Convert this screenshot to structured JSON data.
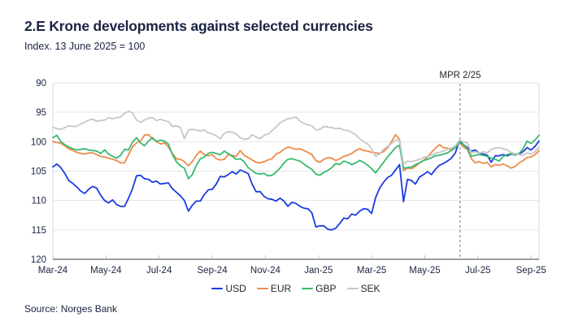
{
  "header": {
    "title": "2.E Krone developments against selected currencies",
    "subtitle": "Index. 13 June 2025 = 100"
  },
  "source": {
    "label": "Source: Norges Bank"
  },
  "colors": {
    "usd": "#1a3cdf",
    "eur": "#ee8b49",
    "gbp": "#36ba6f",
    "sek": "#c5c7c9",
    "grid": "#e4e5e7",
    "axis": "#5f6367",
    "spine": "#d9dbdd",
    "tick": "#c3c5c7",
    "dashed_line": "#6e7276",
    "axis_label": "#1b2444"
  },
  "chart_data": {
    "type": "line",
    "title": "2.E Krone developments against selected currencies",
    "subtitle": "Index. 13 June 2025 = 100",
    "grid": "horizontal",
    "legend_position": "bottom-center",
    "y_axis": {
      "min": 90,
      "max": 120,
      "inverted": true,
      "ticks": [
        90,
        95,
        100,
        105,
        110,
        115,
        120
      ]
    },
    "x_axis": {
      "unit": "months since 1 Mar 2024",
      "max_month": 18.3,
      "ticks": [
        {
          "month": 0,
          "label": "Mar-24"
        },
        {
          "month": 2,
          "label": "May-24"
        },
        {
          "month": 4,
          "label": "Jul-24"
        },
        {
          "month": 6,
          "label": "Sep-24"
        },
        {
          "month": 8,
          "label": "Nov-24"
        },
        {
          "month": 10,
          "label": "Jan-25"
        },
        {
          "month": 12,
          "label": "Mar-25"
        },
        {
          "month": 14,
          "label": "May-25"
        },
        {
          "month": 16,
          "label": "Jul-25"
        },
        {
          "month": 18,
          "label": "Sep-25"
        }
      ]
    },
    "annotation_line": {
      "label": "MPR 2/25",
      "x_month": 15.33,
      "style": "dashed"
    },
    "x_start": 0,
    "x_step": 0.15,
    "series": [
      {
        "name": "USD",
        "color": "#1a3cdf",
        "values": [
          104.3,
          103.8,
          104.4,
          105.4,
          106.6,
          107.1,
          107.7,
          108.4,
          108.8,
          108.1,
          107.6,
          107.9,
          109.1,
          110,
          110.4,
          109.9,
          110.7,
          111,
          111,
          109.6,
          108,
          105.8,
          105.7,
          106.3,
          106.4,
          106.9,
          106.7,
          107.2,
          107.1,
          107,
          108,
          108.6,
          109.2,
          110,
          111.8,
          110.8,
          110.1,
          110.1,
          109,
          108.2,
          108.1,
          107.2,
          105.9,
          106,
          105.6,
          105.1,
          105.5,
          104.8,
          105.1,
          105.4,
          107.2,
          108.5,
          108.5,
          109.3,
          109.7,
          109.8,
          110.1,
          109.6,
          110.1,
          111,
          110.3,
          110.5,
          111,
          111.3,
          111.4,
          112.1,
          114.5,
          114.3,
          114.3,
          114.9,
          115,
          114.7,
          113.9,
          113,
          113.1,
          112.3,
          112.5,
          111.8,
          111.4,
          111.5,
          112.2,
          109.5,
          107.9,
          106.9,
          106.1,
          105.7,
          104.8,
          103.9,
          110.2,
          106.4,
          106.6,
          107.2,
          106,
          105.6,
          105.1,
          105.6,
          104.7,
          104,
          103.7,
          103.3,
          102.8,
          101.9,
          99.8,
          100.5,
          101,
          101.6,
          101.4,
          102,
          102.1,
          102.3,
          103.5,
          102.4,
          102.4,
          102.2,
          102.4,
          102.1,
          102.1,
          102.1,
          101.7,
          101,
          101.4,
          100.8,
          99.9
        ]
      },
      {
        "name": "EUR",
        "color": "#ee8b49",
        "values": [
          100,
          100.1,
          100.3,
          100.7,
          101.2,
          101.5,
          101.8,
          102,
          102.1,
          101.9,
          101.9,
          102.2,
          102.5,
          102.6,
          102.8,
          103,
          103.2,
          103.6,
          103.6,
          102.2,
          100.9,
          100.2,
          99.9,
          98.9,
          98.8,
          99.5,
          99.9,
          100.4,
          100.2,
          100.9,
          102,
          102.9,
          103,
          103.4,
          104.1,
          103.4,
          102.3,
          101.6,
          102.2,
          102.4,
          102.2,
          102.9,
          103.1,
          103,
          102.2,
          102.3,
          102.5,
          101.5,
          102.3,
          102.7,
          103.1,
          103.5,
          103.6,
          103.4,
          103.1,
          102.9,
          102.1,
          101.8,
          101.3,
          100.9,
          101.1,
          101.3,
          101.2,
          101.5,
          101.8,
          102.2,
          103.2,
          103.5,
          103,
          102.7,
          102.8,
          103.2,
          102.9,
          102.5,
          102.3,
          102,
          101.5,
          101.2,
          101.5,
          101.6,
          101.8,
          101.9,
          102,
          101.7,
          101,
          100,
          98.8,
          99.6,
          104.9,
          104.5,
          104.6,
          104.2,
          103.6,
          103.2,
          102.6,
          101.8,
          101.1,
          100.5,
          101,
          101.1,
          101.4,
          100.8,
          100.1,
          100.9,
          101.3,
          102.9,
          103.6,
          103.4,
          103.7,
          103.5,
          104.3,
          103.9,
          104,
          103.8,
          104.1,
          104.5,
          104.2,
          103.6,
          103.2,
          102.7,
          102.6,
          102.2,
          101.5
        ]
      },
      {
        "name": "GBP",
        "color": "#36ba6f",
        "values": [
          99.3,
          98.9,
          100,
          100.5,
          100.9,
          101.2,
          101.4,
          101.3,
          101.2,
          101.4,
          101.5,
          101.6,
          102,
          101.4,
          102.1,
          102.5,
          102.8,
          102.3,
          101.3,
          101.4,
          100.1,
          99.3,
          100.2,
          100.7,
          99.9,
          99.3,
          100,
          99.7,
          99.9,
          100.4,
          102.2,
          103.4,
          104.1,
          104.5,
          106.3,
          105.6,
          104,
          102.9,
          102.6,
          102,
          101.8,
          102,
          102.2,
          101.6,
          102,
          102.5,
          103,
          102.9,
          103.4,
          104.4,
          104.9,
          105.4,
          105.5,
          105.4,
          105.8,
          105.7,
          105.2,
          104.5,
          103.6,
          103,
          102.9,
          103.1,
          103.3,
          103.8,
          104.3,
          104.7,
          105.5,
          105.7,
          105.2,
          104.9,
          104.4,
          103.7,
          103.9,
          103.3,
          103.5,
          103.9,
          103.6,
          103.2,
          103.5,
          104,
          104.6,
          105.3,
          104.4,
          103.5,
          102.6,
          101.8,
          101,
          100.6,
          104.5,
          104.4,
          104.3,
          103.9,
          103.6,
          103.2,
          103,
          102.7,
          102.4,
          102.3,
          102.1,
          101.9,
          101.5,
          101,
          100.1,
          100.5,
          101.2,
          102.5,
          102.3,
          102.2,
          102.3,
          102.5,
          102.8,
          103,
          103.3,
          102.5,
          102.2,
          102,
          102.3,
          102,
          101.2,
          99.9,
          100.3,
          99.7,
          98.9
        ]
      },
      {
        "name": "SEK",
        "color": "#c5c7c9",
        "values": [
          97.5,
          97.8,
          97.9,
          97.6,
          97.3,
          97.4,
          97.4,
          97,
          96.7,
          96.3,
          96.2,
          96.5,
          96.4,
          96.3,
          95.9,
          96.1,
          95.9,
          95.8,
          95.2,
          94.8,
          95.1,
          96.3,
          96.7,
          96.3,
          96,
          95.9,
          96.4,
          96.2,
          96.4,
          96.6,
          97.4,
          97.3,
          97.6,
          99.5,
          98,
          97.9,
          98,
          98.2,
          98,
          98.5,
          98.7,
          99,
          99.5,
          98.6,
          98.3,
          98.4,
          98.7,
          99.3,
          99.6,
          99.5,
          98.8,
          99.2,
          99.5,
          98.9,
          98.7,
          98.1,
          97.5,
          96.8,
          96.4,
          96.1,
          96,
          95.8,
          96.5,
          96.9,
          97.1,
          97.3,
          98,
          97.9,
          97.4,
          97.5,
          97.6,
          97.8,
          97.7,
          98,
          98.1,
          98.4,
          98.8,
          99.5,
          100,
          100.4,
          101.2,
          102.5,
          102.1,
          101.3,
          100.8,
          100.3,
          99.8,
          99.7,
          103.9,
          103.3,
          103.4,
          103.2,
          103,
          102.7,
          102.5,
          102.3,
          102,
          101.8,
          101.6,
          101.3,
          101.1,
          100.7,
          99.8,
          100,
          100.2,
          101.9,
          101.7,
          102,
          101.7,
          101.9,
          101.3,
          101.1,
          101,
          101.2,
          101.4,
          101.8,
          102.1,
          102.2,
          102.3,
          101.9,
          102.1,
          101.7,
          100.9
        ]
      }
    ]
  }
}
